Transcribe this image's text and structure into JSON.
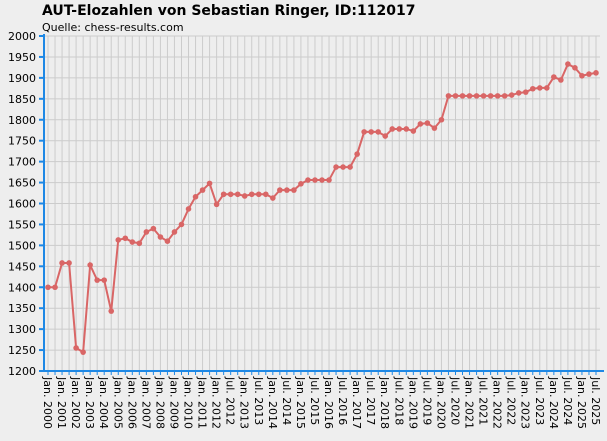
{
  "chart_data": {
    "type": "line",
    "title": "AUT-Elozahlen von Sebastian Ringer, ID:112017",
    "subtitle": "Quelle: chess-results.com",
    "categories": [
      "Jan. 2000",
      null,
      "Jan. 2001",
      null,
      "Jan. 2002",
      null,
      "Jan. 2003",
      null,
      "Jan. 2004",
      null,
      "Jan. 2005",
      null,
      "Jan. 2006",
      null,
      "Jan. 2007",
      null,
      "Jan. 2008",
      null,
      "Jan. 2009",
      null,
      "Jan. 2010",
      null,
      "Jan. 2011",
      null,
      "Jan. 2012",
      null,
      "Jul. 2012",
      null,
      "Jan. 2013",
      null,
      "Jul. 2013",
      null,
      "Jan. 2014",
      null,
      "Jul. 2014",
      null,
      "Jan. 2015",
      null,
      "Jul. 2015",
      null,
      "Jan. 2016",
      null,
      "Jul. 2016",
      null,
      "Jan. 2017",
      null,
      "Jul. 2017",
      null,
      "Jan. 2018",
      null,
      "Jul. 2018",
      null,
      "Jan. 2019",
      null,
      "Jul. 2019",
      null,
      "Jan. 2020",
      null,
      "Jul. 2020",
      null,
      "Jan. 2021",
      null,
      "Jul. 2021",
      null,
      "Jan. 2022",
      null,
      "Jul. 2022",
      null,
      "Jan. 2023",
      null,
      "Jul. 2023",
      null,
      "Jan. 2024",
      null,
      "Jul. 2024",
      null,
      "Jan. 2025",
      null,
      "Jul. 2025"
    ],
    "series": [
      {
        "name": "Elo",
        "color": "#d96666",
        "values": [
          1400,
          1400,
          1458,
          1458,
          1255,
          1245,
          1453,
          1417,
          1417,
          1343,
          1513,
          1517,
          1508,
          1505,
          1532,
          1540,
          1520,
          1510,
          1532,
          1550,
          1587,
          1616,
          1632,
          1648,
          1598,
          1622,
          1622,
          1622,
          1618,
          1622,
          1622,
          1622,
          1613,
          1632,
          1632,
          1632,
          1647,
          1656,
          1656,
          1656,
          1656,
          1687,
          1687,
          1687,
          1718,
          1771,
          1771,
          1771,
          1761,
          1778,
          1778,
          1778,
          1773,
          1790,
          1792,
          1780,
          1800,
          1857,
          1857,
          1857,
          1857,
          1857,
          1857,
          1857,
          1857,
          1857,
          1859,
          1864,
          1866,
          1874,
          1876,
          1876,
          1902,
          1895,
          1933,
          1924,
          1905,
          1909,
          1912
        ]
      }
    ],
    "ylim": [
      1200,
      2000
    ],
    "yticks": [
      1200,
      1250,
      1300,
      1350,
      1400,
      1450,
      1500,
      1550,
      1600,
      1650,
      1700,
      1750,
      1800,
      1850,
      1900,
      1950,
      2000
    ],
    "grid": true
  }
}
